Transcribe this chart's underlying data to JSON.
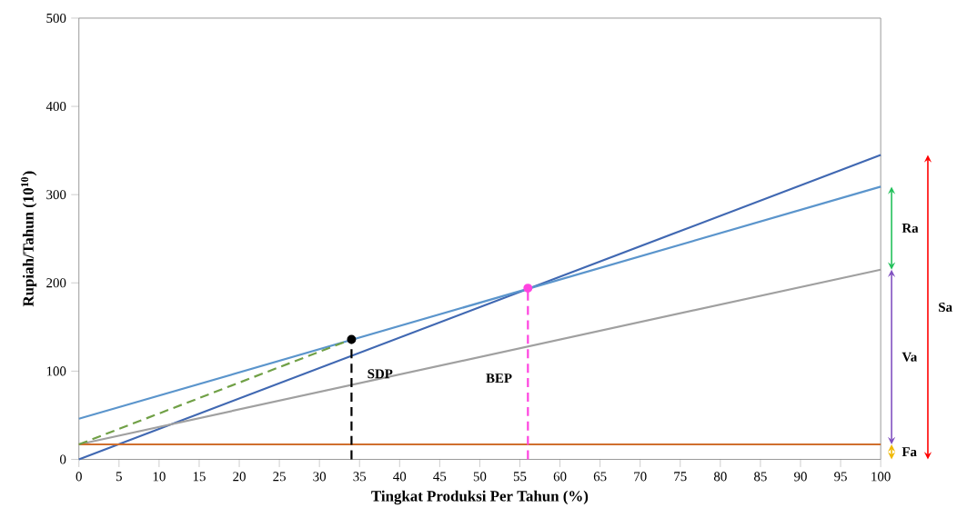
{
  "chart_data": {
    "type": "line",
    "xlabel": "Tingkat Produksi Per Tahun (%)",
    "ylabel": "Rupiah/Tahun (10$^{10}$)",
    "xlim": [
      0,
      100
    ],
    "ylim": [
      0,
      500
    ],
    "xticks": [
      0,
      5,
      10,
      15,
      20,
      25,
      30,
      35,
      40,
      45,
      50,
      55,
      60,
      65,
      70,
      75,
      80,
      85,
      90,
      95,
      100
    ],
    "yticks": [
      0,
      100,
      200,
      300,
      400,
      500
    ],
    "series": [
      {
        "color": "#4068b2",
        "x": [
          0,
          100
        ],
        "values": [
          0,
          345
        ]
      },
      {
        "color": "#5b95cc",
        "x": [
          0,
          100
        ],
        "values": [
          46,
          309
        ]
      },
      {
        "color": "#a0a0a0",
        "x": [
          0,
          100
        ],
        "values": [
          17,
          215
        ]
      },
      {
        "color": "#d06f2e",
        "x": [
          0,
          100
        ],
        "values": [
          17,
          17
        ]
      },
      {
        "color": "#70a046",
        "line_style": "dashed",
        "x": [
          0,
          34
        ],
        "values": [
          17,
          136
        ]
      },
      {
        "color": "#000000",
        "line_style": "dashed",
        "x": [
          34,
          34
        ],
        "values": [
          0,
          136
        ]
      },
      {
        "color": "#ff44e0",
        "line_style": "dashed",
        "x": [
          56,
          56
        ],
        "values": [
          0,
          194
        ]
      },
      {
        "type": "scatter",
        "color": "#000000",
        "marker": "circle",
        "x": [
          34
        ],
        "values": [
          136
        ]
      },
      {
        "type": "scatter",
        "color": "#ff44e0",
        "marker": "circle",
        "x": [
          56
        ],
        "values": [
          194
        ]
      }
    ],
    "annotations": [
      {
        "text": "SDP",
        "x": 34,
        "y": 97
      },
      {
        "text": "BEP",
        "x": 56,
        "y": 92
      },
      "Fa",
      "Va",
      "Ra",
      "Sa"
    ]
  }
}
